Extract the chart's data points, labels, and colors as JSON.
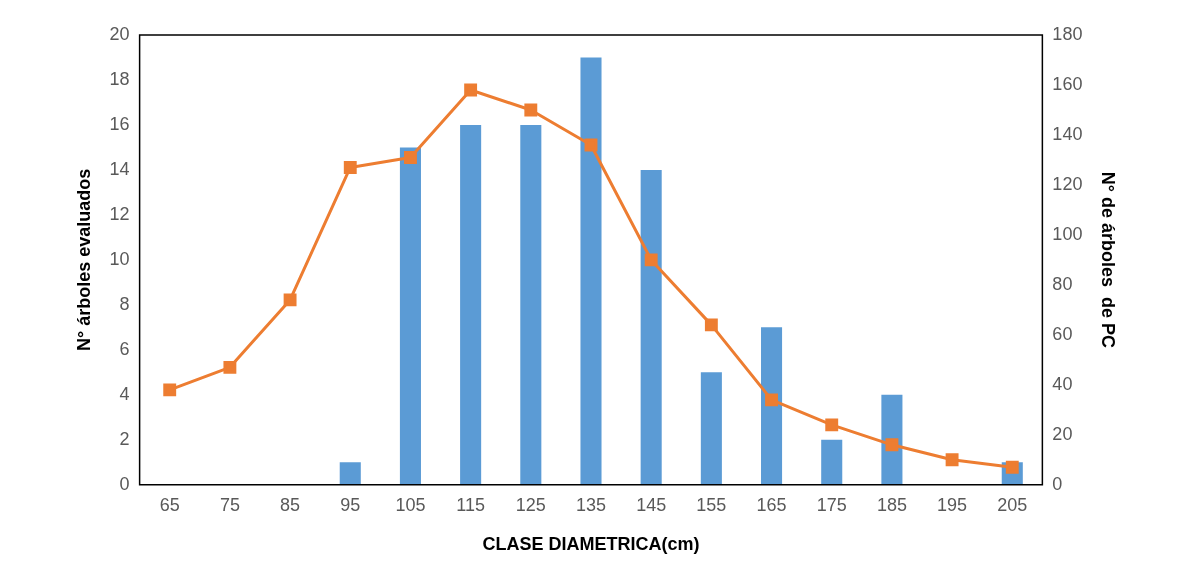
{
  "chart_data": {
    "type": "bar",
    "xlabel": "CLASE DIAMETRICA(cm)",
    "ylabel": "N° árboles evaluados",
    "y2label": "N° de árboles  de PC",
    "categories": [
      "65",
      "75",
      "85",
      "95",
      "105",
      "115",
      "125",
      "135",
      "145",
      "155",
      "165",
      "175",
      "185",
      "195",
      "205"
    ],
    "series": [
      {
        "color": "#5b9bd5",
        "values": [
          0,
          0,
          0,
          1,
          15,
          16,
          16,
          19,
          14,
          5,
          7,
          2,
          4,
          0,
          1
        ]
      },
      {
        "type": "line",
        "axis": "y2",
        "color": "#ed7d31",
        "marker": "square",
        "values": [
          38,
          47,
          74,
          127,
          131,
          158,
          150,
          136,
          90,
          64,
          34,
          24,
          16,
          10,
          7
        ]
      }
    ],
    "ylim": [
      0,
      20
    ],
    "yticks": [
      0,
      2,
      4,
      6,
      8,
      10,
      12,
      14,
      16,
      18,
      20
    ],
    "y2lim": [
      0,
      180
    ],
    "y2ticks": [
      0,
      20,
      40,
      60,
      80,
      100,
      120,
      140,
      160,
      180
    ],
    "grid": false,
    "legend": false
  }
}
